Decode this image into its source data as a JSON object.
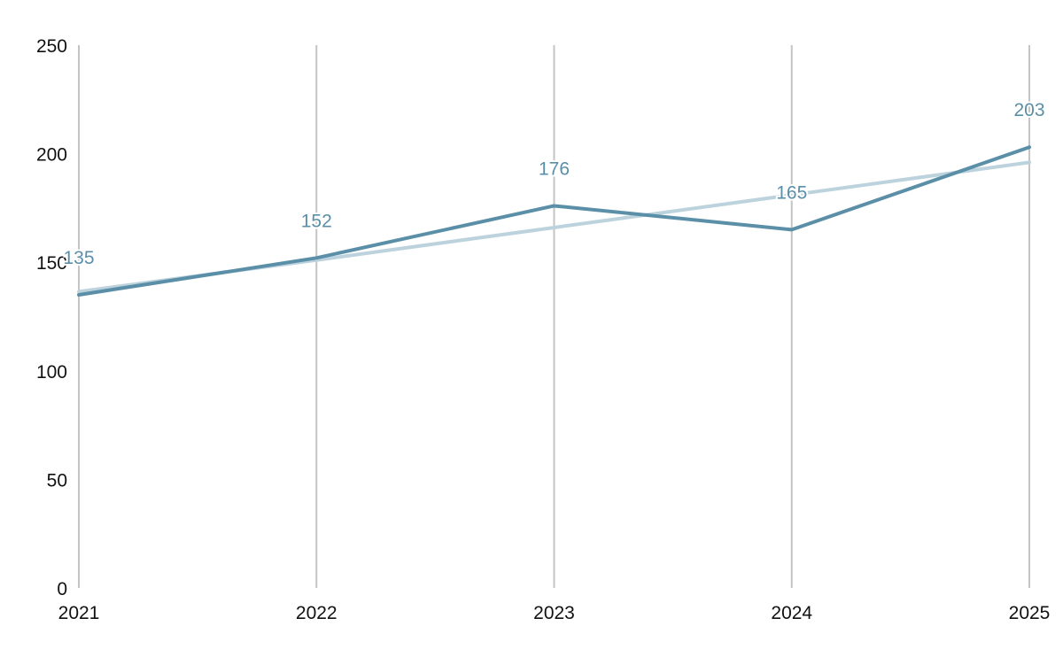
{
  "chart_data": {
    "type": "line",
    "x": [
      "2021",
      "2022",
      "2023",
      "2024",
      "2025"
    ],
    "series": [
      {
        "values": [
          135,
          152,
          176,
          165,
          203
        ],
        "color": "#5b8fa8",
        "data_labels": true
      },
      {
        "values": [
          136.5,
          151,
          166,
          181,
          196
        ],
        "color": "#bcd3de",
        "data_labels": false
      }
    ],
    "y_ticks": [
      0,
      50,
      100,
      150,
      200,
      250
    ],
    "ylim": [
      0,
      250
    ],
    "grid": "vertical",
    "title": "",
    "xlabel": "",
    "ylabel": ""
  }
}
